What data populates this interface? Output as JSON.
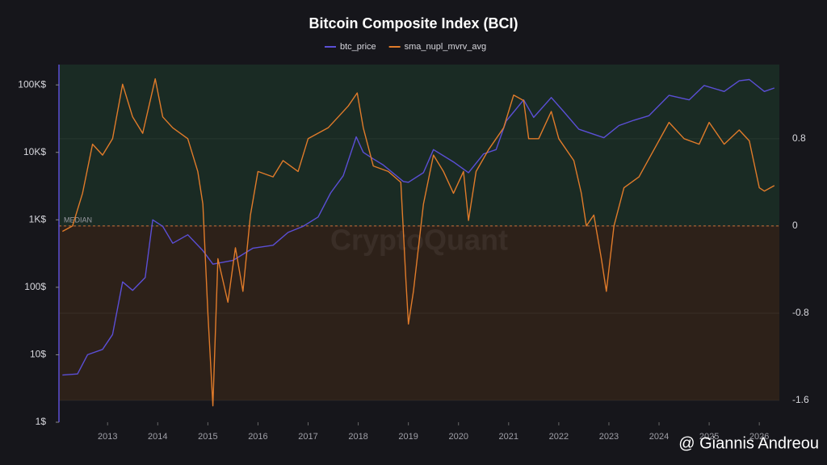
{
  "chart_data": {
    "type": "line",
    "title": "Bitcoin Composite Index (BCI)",
    "xlim": [
      2012.03,
      2026.4
    ],
    "xticks": [
      2013,
      2014,
      2015,
      2016,
      2017,
      2018,
      2019,
      2020,
      2021,
      2022,
      2023,
      2024,
      2025,
      2026
    ],
    "ylim": [
      1,
      200000
    ],
    "yscale": "log",
    "yticks": [
      {
        "value": 1,
        "label": "1$"
      },
      {
        "value": 10,
        "label": "10$"
      },
      {
        "value": 100,
        "label": "100$"
      },
      {
        "value": 1000,
        "label": "1K$"
      },
      {
        "value": 10000,
        "label": "10K$"
      },
      {
        "value": 100000,
        "label": "100K$"
      }
    ],
    "y2lim": [
      -1.8,
      1.48
    ],
    "y2ticks": [
      -1.6,
      -0.8,
      0,
      0.8
    ],
    "reference_line": {
      "label": "MEDIAN",
      "value": 0,
      "axis": "y2"
    },
    "watermark": "CryptoQuant",
    "credit": "@ Giannis Andreou",
    "series": [
      {
        "name": "btc_price",
        "color": "#5b4fd6",
        "x": [
          2012.1,
          2012.4,
          2012.6,
          2012.9,
          2013.1,
          2013.3,
          2013.5,
          2013.75,
          2013.9,
          2014.1,
          2014.3,
          2014.6,
          2014.9,
          2015.1,
          2015.5,
          2015.9,
          2016.3,
          2016.6,
          2016.9,
          2017.2,
          2017.45,
          2017.7,
          2017.96,
          2018.1,
          2018.3,
          2018.5,
          2018.9,
          2019.0,
          2019.3,
          2019.5,
          2019.9,
          2020.2,
          2020.5,
          2020.75,
          2020.95,
          2021.3,
          2021.5,
          2021.85,
          2022.1,
          2022.4,
          2022.9,
          2023.2,
          2023.5,
          2023.8,
          2024.2,
          2024.6,
          2024.9,
          2025.3,
          2025.6,
          2025.8,
          2026.1,
          2026.3
        ],
        "values": [
          5,
          5.2,
          10,
          12,
          20,
          120,
          90,
          140,
          1000,
          800,
          450,
          600,
          350,
          220,
          250,
          380,
          420,
          650,
          800,
          1100,
          2500,
          4500,
          17000,
          10000,
          8000,
          6500,
          3700,
          3600,
          5000,
          11000,
          7200,
          5000,
          9500,
          11000,
          29000,
          60000,
          33000,
          65000,
          40000,
          22000,
          16500,
          25000,
          30000,
          35000,
          70000,
          60000,
          98000,
          80000,
          115000,
          120000,
          80000,
          90000
        ]
      },
      {
        "name": "sma_nupl_mvrv_avg",
        "color": "#e07b2a",
        "axis": "y2",
        "x": [
          2012.1,
          2012.3,
          2012.5,
          2012.7,
          2012.9,
          2013.1,
          2013.3,
          2013.5,
          2013.7,
          2013.95,
          2014.1,
          2014.3,
          2014.6,
          2014.8,
          2014.9,
          2015.0,
          2015.1,
          2015.2,
          2015.4,
          2015.55,
          2015.7,
          2015.85,
          2016.0,
          2016.3,
          2016.5,
          2016.8,
          2017.0,
          2017.4,
          2017.6,
          2017.8,
          2017.98,
          2018.1,
          2018.3,
          2018.6,
          2018.85,
          2018.95,
          2019.0,
          2019.1,
          2019.3,
          2019.5,
          2019.7,
          2019.9,
          2020.1,
          2020.2,
          2020.35,
          2020.6,
          2020.9,
          2021.1,
          2021.3,
          2021.4,
          2021.6,
          2021.85,
          2022.0,
          2022.3,
          2022.45,
          2022.55,
          2022.7,
          2022.85,
          2022.95,
          2023.1,
          2023.3,
          2023.6,
          2023.9,
          2024.2,
          2024.5,
          2024.8,
          2025.0,
          2025.3,
          2025.6,
          2025.8,
          2026.0,
          2026.1,
          2026.3
        ],
        "values": [
          -0.05,
          0.0,
          0.3,
          0.75,
          0.65,
          0.8,
          1.3,
          1.0,
          0.85,
          1.35,
          1.0,
          0.9,
          0.8,
          0.5,
          0.2,
          -0.8,
          -1.65,
          -0.3,
          -0.7,
          -0.2,
          -0.6,
          0.1,
          0.5,
          0.45,
          0.6,
          0.5,
          0.8,
          0.9,
          1.0,
          1.1,
          1.22,
          0.9,
          0.55,
          0.5,
          0.4,
          -0.5,
          -0.9,
          -0.6,
          0.2,
          0.65,
          0.5,
          0.3,
          0.5,
          0.05,
          0.5,
          0.7,
          0.9,
          1.2,
          1.15,
          0.8,
          0.8,
          1.05,
          0.8,
          0.6,
          0.3,
          0.0,
          0.1,
          -0.3,
          -0.6,
          0.0,
          0.35,
          0.45,
          0.7,
          0.95,
          0.8,
          0.75,
          0.95,
          0.75,
          0.88,
          0.78,
          0.35,
          0.32,
          0.37
        ]
      }
    ]
  }
}
